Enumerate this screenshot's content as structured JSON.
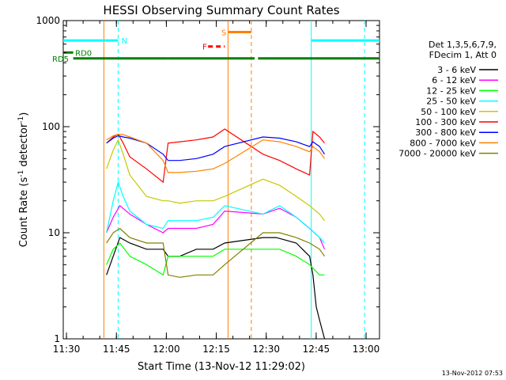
{
  "chart_data": {
    "type": "line",
    "title": "HESSI Observing Summary Count Rates",
    "xlabel": "Start Time (13-Nov-12 11:29:02)",
    "ylabel_main": "Count Rate (s",
    "ylabel_sup1": "-1",
    "ylabel_mid": " detector",
    "ylabel_sup2": "-1",
    "ylabel_end": ")",
    "yscale": "log",
    "ylim": [
      1,
      1000
    ],
    "xlim_minutes": [
      0,
      95
    ],
    "x_ticks": [
      {
        "m": 0.97,
        "label": "11:30"
      },
      {
        "m": 15.97,
        "label": "11:45"
      },
      {
        "m": 30.97,
        "label": "12:00"
      },
      {
        "m": 45.97,
        "label": "12:15"
      },
      {
        "m": 60.97,
        "label": "12:30"
      },
      {
        "m": 75.97,
        "label": "12:45"
      },
      {
        "m": 90.97,
        "label": "13:00"
      }
    ],
    "y_ticks": [
      {
        "v": 1,
        "label": "1"
      },
      {
        "v": 10,
        "label": "10"
      },
      {
        "v": 100,
        "label": "100"
      },
      {
        "v": 1000,
        "label": "1000"
      }
    ],
    "legend_header": [
      "Det 1,3,5,6,7,9,",
      "FDecim 1, Att 0"
    ],
    "legend_position": "right",
    "timestamp": "13-Nov-2012 07:53",
    "flags": [
      {
        "label": "N",
        "color": "#00ffff",
        "segments": [
          [
            0,
            16.5
          ],
          [
            74.5,
            95
          ]
        ],
        "y": 650
      },
      {
        "label": "S",
        "color": "#ff8000",
        "segments": [
          [
            49.5,
            56.5
          ]
        ],
        "y": 780
      },
      {
        "label": "F",
        "color": "#ff0000",
        "segments": [
          [
            43.5,
            48.5
          ]
        ],
        "y": 570,
        "dashed": true
      },
      {
        "label": "RD0",
        "color": "#008000",
        "segments": [
          [
            0,
            3.0
          ]
        ],
        "y": 500
      },
      {
        "label": "RD5",
        "color": "#008000",
        "segments": [
          [
            3.0,
            31.5
          ],
          [
            31.5,
            57.5
          ],
          [
            58.5,
            75.5
          ],
          [
            75.5,
            95
          ]
        ],
        "y": 440
      }
    ],
    "vlines": [
      {
        "m": 12.2,
        "color": "#ff8000",
        "dashed": false
      },
      {
        "m": 16.5,
        "color": "#00ffff",
        "dashed": true
      },
      {
        "m": 49.5,
        "color": "#ff8000",
        "dashed": false
      },
      {
        "m": 56.5,
        "color": "#ff8000",
        "dashed": true
      },
      {
        "m": 74.5,
        "color": "#00ffff",
        "dashed": false
      },
      {
        "m": 90.5,
        "color": "#00ffff",
        "dashed": true
      }
    ],
    "series": [
      {
        "name": "3 - 6 keV",
        "color": "#000000",
        "values": [
          [
            13.0,
            4
          ],
          [
            15,
            6
          ],
          [
            17,
            9
          ],
          [
            20,
            8
          ],
          [
            25,
            7
          ],
          [
            30,
            7
          ],
          [
            31.5,
            6
          ],
          [
            35,
            6
          ],
          [
            40,
            7
          ],
          [
            45,
            7
          ],
          [
            48.5,
            8
          ],
          [
            60,
            9
          ],
          [
            64,
            9
          ],
          [
            70,
            8
          ],
          [
            74,
            6
          ],
          [
            75,
            4
          ],
          [
            76,
            2
          ],
          [
            77,
            1.5
          ],
          [
            78.5,
            1
          ]
        ]
      },
      {
        "name": "6 - 12 keV",
        "color": "#ff00ff",
        "values": [
          [
            13.0,
            10
          ],
          [
            15,
            14
          ],
          [
            17,
            18
          ],
          [
            20,
            15
          ],
          [
            25,
            12
          ],
          [
            30,
            10
          ],
          [
            31.5,
            11
          ],
          [
            35,
            11
          ],
          [
            40,
            11
          ],
          [
            45,
            12
          ],
          [
            48.5,
            16
          ],
          [
            60,
            15
          ],
          [
            65,
            17
          ],
          [
            70,
            14
          ],
          [
            74,
            11
          ],
          [
            77,
            9
          ],
          [
            78.5,
            7
          ]
        ]
      },
      {
        "name": "12 - 25 keV",
        "color": "#00ff00",
        "values": [
          [
            13.0,
            5
          ],
          [
            15,
            7
          ],
          [
            17,
            8
          ],
          [
            20,
            6
          ],
          [
            25,
            5
          ],
          [
            30,
            4
          ],
          [
            31.5,
            6
          ],
          [
            35,
            6
          ],
          [
            40,
            6
          ],
          [
            45,
            6
          ],
          [
            48.5,
            7
          ],
          [
            60,
            7
          ],
          [
            65,
            7
          ],
          [
            70,
            6
          ],
          [
            74,
            5
          ],
          [
            77,
            4
          ],
          [
            78.5,
            4
          ]
        ]
      },
      {
        "name": "25 - 50 keV",
        "color": "#00ffff",
        "values": [
          [
            13.0,
            10
          ],
          [
            15,
            20
          ],
          [
            16.5,
            30
          ],
          [
            18,
            22
          ],
          [
            20,
            16
          ],
          [
            25,
            12
          ],
          [
            30,
            11
          ],
          [
            31.5,
            13
          ],
          [
            35,
            13
          ],
          [
            40,
            13
          ],
          [
            45,
            14
          ],
          [
            48.5,
            18
          ],
          [
            60,
            15
          ],
          [
            65,
            18
          ],
          [
            70,
            14
          ],
          [
            74,
            11
          ],
          [
            77,
            9
          ],
          [
            78.5,
            8
          ]
        ]
      },
      {
        "name": "50 - 100 keV",
        "color": "#c8c800",
        "values": [
          [
            13.0,
            40
          ],
          [
            15,
            60
          ],
          [
            16.5,
            75
          ],
          [
            18,
            55
          ],
          [
            20,
            35
          ],
          [
            25,
            22
          ],
          [
            30,
            20
          ],
          [
            31.5,
            20
          ],
          [
            35,
            19
          ],
          [
            40,
            20
          ],
          [
            45,
            20
          ],
          [
            48.5,
            22
          ],
          [
            60,
            32
          ],
          [
            65,
            28
          ],
          [
            70,
            22
          ],
          [
            74,
            18
          ],
          [
            77,
            15
          ],
          [
            78.5,
            13
          ]
        ]
      },
      {
        "name": "100 - 300 keV",
        "color": "#ff0000",
        "values": [
          [
            13.0,
            70
          ],
          [
            15,
            80
          ],
          [
            16.5,
            85
          ],
          [
            18,
            70
          ],
          [
            20,
            52
          ],
          [
            25,
            40
          ],
          [
            30,
            30
          ],
          [
            31.5,
            70
          ],
          [
            35,
            72
          ],
          [
            40,
            75
          ],
          [
            45,
            80
          ],
          [
            48.5,
            95
          ],
          [
            60,
            55
          ],
          [
            65,
            48
          ],
          [
            70,
            40
          ],
          [
            74,
            35
          ],
          [
            75,
            90
          ],
          [
            77,
            80
          ],
          [
            78.5,
            70
          ]
        ]
      },
      {
        "name": "300 - 800 keV",
        "color": "#0000ff",
        "values": [
          [
            13.0,
            70
          ],
          [
            15,
            78
          ],
          [
            16.5,
            82
          ],
          [
            18,
            80
          ],
          [
            20,
            78
          ],
          [
            25,
            70
          ],
          [
            30,
            55
          ],
          [
            31.5,
            48
          ],
          [
            35,
            48
          ],
          [
            40,
            50
          ],
          [
            45,
            55
          ],
          [
            48.5,
            65
          ],
          [
            60,
            80
          ],
          [
            65,
            78
          ],
          [
            70,
            72
          ],
          [
            74,
            65
          ],
          [
            75,
            72
          ],
          [
            77,
            65
          ],
          [
            78.5,
            55
          ]
        ]
      },
      {
        "name": "800 - 7000 keV",
        "color": "#ff8000",
        "values": [
          [
            13.0,
            75
          ],
          [
            15,
            82
          ],
          [
            16.5,
            85
          ],
          [
            18,
            84
          ],
          [
            20,
            80
          ],
          [
            25,
            70
          ],
          [
            30,
            48
          ],
          [
            31.5,
            37
          ],
          [
            35,
            37
          ],
          [
            40,
            38
          ],
          [
            45,
            40
          ],
          [
            48.5,
            45
          ],
          [
            60,
            75
          ],
          [
            65,
            72
          ],
          [
            70,
            65
          ],
          [
            74,
            58
          ],
          [
            75,
            65
          ],
          [
            77,
            58
          ],
          [
            78.5,
            50
          ]
        ]
      },
      {
        "name": "7000 - 20000 keV",
        "color": "#808000",
        "values": [
          [
            13.0,
            8
          ],
          [
            15,
            10
          ],
          [
            17,
            11
          ],
          [
            20,
            9
          ],
          [
            25,
            8
          ],
          [
            30,
            8
          ],
          [
            31.5,
            4
          ],
          [
            35,
            3.8
          ],
          [
            40,
            4
          ],
          [
            45,
            4
          ],
          [
            48.5,
            5
          ],
          [
            60,
            10
          ],
          [
            65,
            10
          ],
          [
            70,
            9
          ],
          [
            74,
            8
          ],
          [
            77,
            7
          ],
          [
            78.5,
            6
          ]
        ]
      }
    ]
  }
}
